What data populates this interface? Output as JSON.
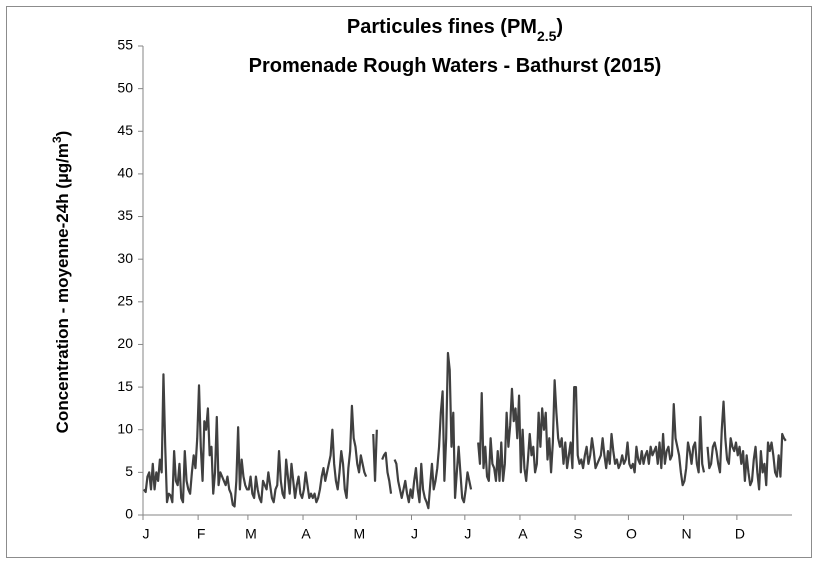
{
  "chart_data": {
    "type": "line",
    "title": [
      [
        "Particules fines (PM",
        "2.5",
        ")"
      ],
      [
        "Promenade Rough Waters - Bathurst (2015)"
      ]
    ],
    "y_label": [
      "Concentration - moyenne-24h (µg/m",
      "3",
      ")"
    ],
    "color": "#404040",
    "xlim": [
      0,
      365
    ],
    "xticks": [
      {
        "value": 0,
        "label": "J"
      },
      {
        "value": 31,
        "label": "F"
      },
      {
        "value": 59,
        "label": "M"
      },
      {
        "value": 90,
        "label": "A"
      },
      {
        "value": 120,
        "label": "M"
      },
      {
        "value": 151,
        "label": "J"
      },
      {
        "value": 181,
        "label": "J"
      },
      {
        "value": 212,
        "label": "A"
      },
      {
        "value": 243,
        "label": "S"
      },
      {
        "value": 273,
        "label": "O"
      },
      {
        "value": 304,
        "label": "N"
      },
      {
        "value": 334,
        "label": "D"
      }
    ],
    "ylim": [
      0,
      55
    ],
    "yticks": [
      0,
      5,
      10,
      15,
      20,
      25,
      30,
      35,
      40,
      45,
      50,
      55
    ],
    "grid": false,
    "values": [
      3,
      2.7,
      4.5,
      5,
      3,
      6,
      3,
      5,
      4,
      6.5,
      5,
      16.5,
      8,
      1.5,
      2.5,
      2.3,
      1.5,
      7.5,
      4,
      3.5,
      6,
      2,
      1.5,
      7.5,
      4,
      3,
      2.5,
      5,
      7,
      5.5,
      9,
      15.2,
      8,
      4,
      11,
      10,
      12.5,
      7,
      8,
      2.5,
      5,
      11.5,
      3.5,
      5,
      4.5,
      4,
      3.5,
      4.5,
      3,
      2.5,
      1.2,
      1,
      4,
      10.3,
      3,
      6.5,
      4.5,
      3.5,
      3,
      3,
      4.5,
      2.5,
      2,
      4.5,
      3,
      2,
      1.5,
      4,
      3.5,
      3,
      5,
      3.5,
      2,
      1.5,
      3,
      3.5,
      7.5,
      4,
      2.5,
      2,
      6.5,
      4.5,
      2.5,
      6,
      4,
      2,
      3.5,
      4.5,
      2.5,
      2,
      3,
      5,
      3.5,
      2,
      2.5,
      2,
      2.5,
      1.5,
      2,
      3,
      4.5,
      5.5,
      4,
      5,
      6,
      7,
      10,
      6,
      4,
      3,
      5,
      7.5,
      6,
      3,
      2,
      5.5,
      7.5,
      12.8,
      9,
      8,
      6,
      5,
      7,
      6,
      5,
      4.5,
      null,
      null,
      null,
      9.5,
      4,
      10,
      null,
      null,
      6.5,
      7,
      7.3,
      5,
      4,
      2.5,
      null,
      6.5,
      6,
      4,
      3,
      2,
      3,
      4,
      2.5,
      1.5,
      3,
      2,
      4,
      5.5,
      3,
      1.5,
      6,
      3,
      2,
      1.5,
      0.8,
      3.5,
      6,
      3,
      4,
      5.5,
      8,
      12,
      14.5,
      4,
      9,
      19,
      17,
      8,
      12,
      2,
      5,
      8,
      5,
      2,
      1.5,
      3,
      5,
      4,
      3,
      null,
      null,
      null,
      8.5,
      6,
      14.3,
      5.5,
      8,
      4.5,
      4,
      9,
      6,
      5.5,
      4,
      7.5,
      4,
      8.5,
      4,
      6,
      12,
      8,
      10.5,
      14.8,
      11,
      12.5,
      9,
      14,
      5,
      10,
      5.5,
      4,
      6.5,
      9.5,
      7,
      8,
      5,
      6,
      12,
      8,
      12.5,
      10,
      12,
      6.5,
      9,
      5,
      8.5,
      15.8,
      12,
      9,
      8,
      9,
      6,
      8.5,
      5.5,
      7,
      8.5,
      5.5,
      15,
      15,
      7,
      6,
      6.5,
      5.5,
      7,
      8,
      6,
      7,
      9,
      7.5,
      5.5,
      6,
      6.5,
      7,
      9,
      7,
      5.5,
      7.5,
      6,
      9.5,
      7.5,
      6,
      6.5,
      5.5,
      6,
      7,
      6,
      6.5,
      8.5,
      6,
      5.5,
      6,
      5,
      8,
      6.5,
      6,
      7.5,
      6,
      7,
      7.5,
      6,
      8,
      7,
      7.5,
      8,
      6,
      8.5,
      5.5,
      9.5,
      6,
      7.5,
      8,
      6.5,
      7,
      13,
      9,
      8,
      7,
      5,
      3.5,
      4,
      5.5,
      8.5,
      7.5,
      6,
      8,
      8.5,
      6,
      5,
      11.5,
      6,
      5,
      null,
      8,
      5.5,
      6,
      8,
      8.5,
      7.5,
      6,
      5,
      10,
      13.3,
      9,
      6.5,
      6,
      9,
      8,
      7.5,
      8.5,
      7,
      8,
      6,
      7.5,
      4,
      7,
      5,
      3.5,
      4,
      6.5,
      8,
      5,
      3,
      7.5,
      5,
      6,
      3.5,
      8.5,
      7.5,
      8.5,
      7,
      5,
      4.5,
      7,
      4.5,
      9.5,
      9,
      8.7,
      null,
      null,
      null
    ]
  }
}
